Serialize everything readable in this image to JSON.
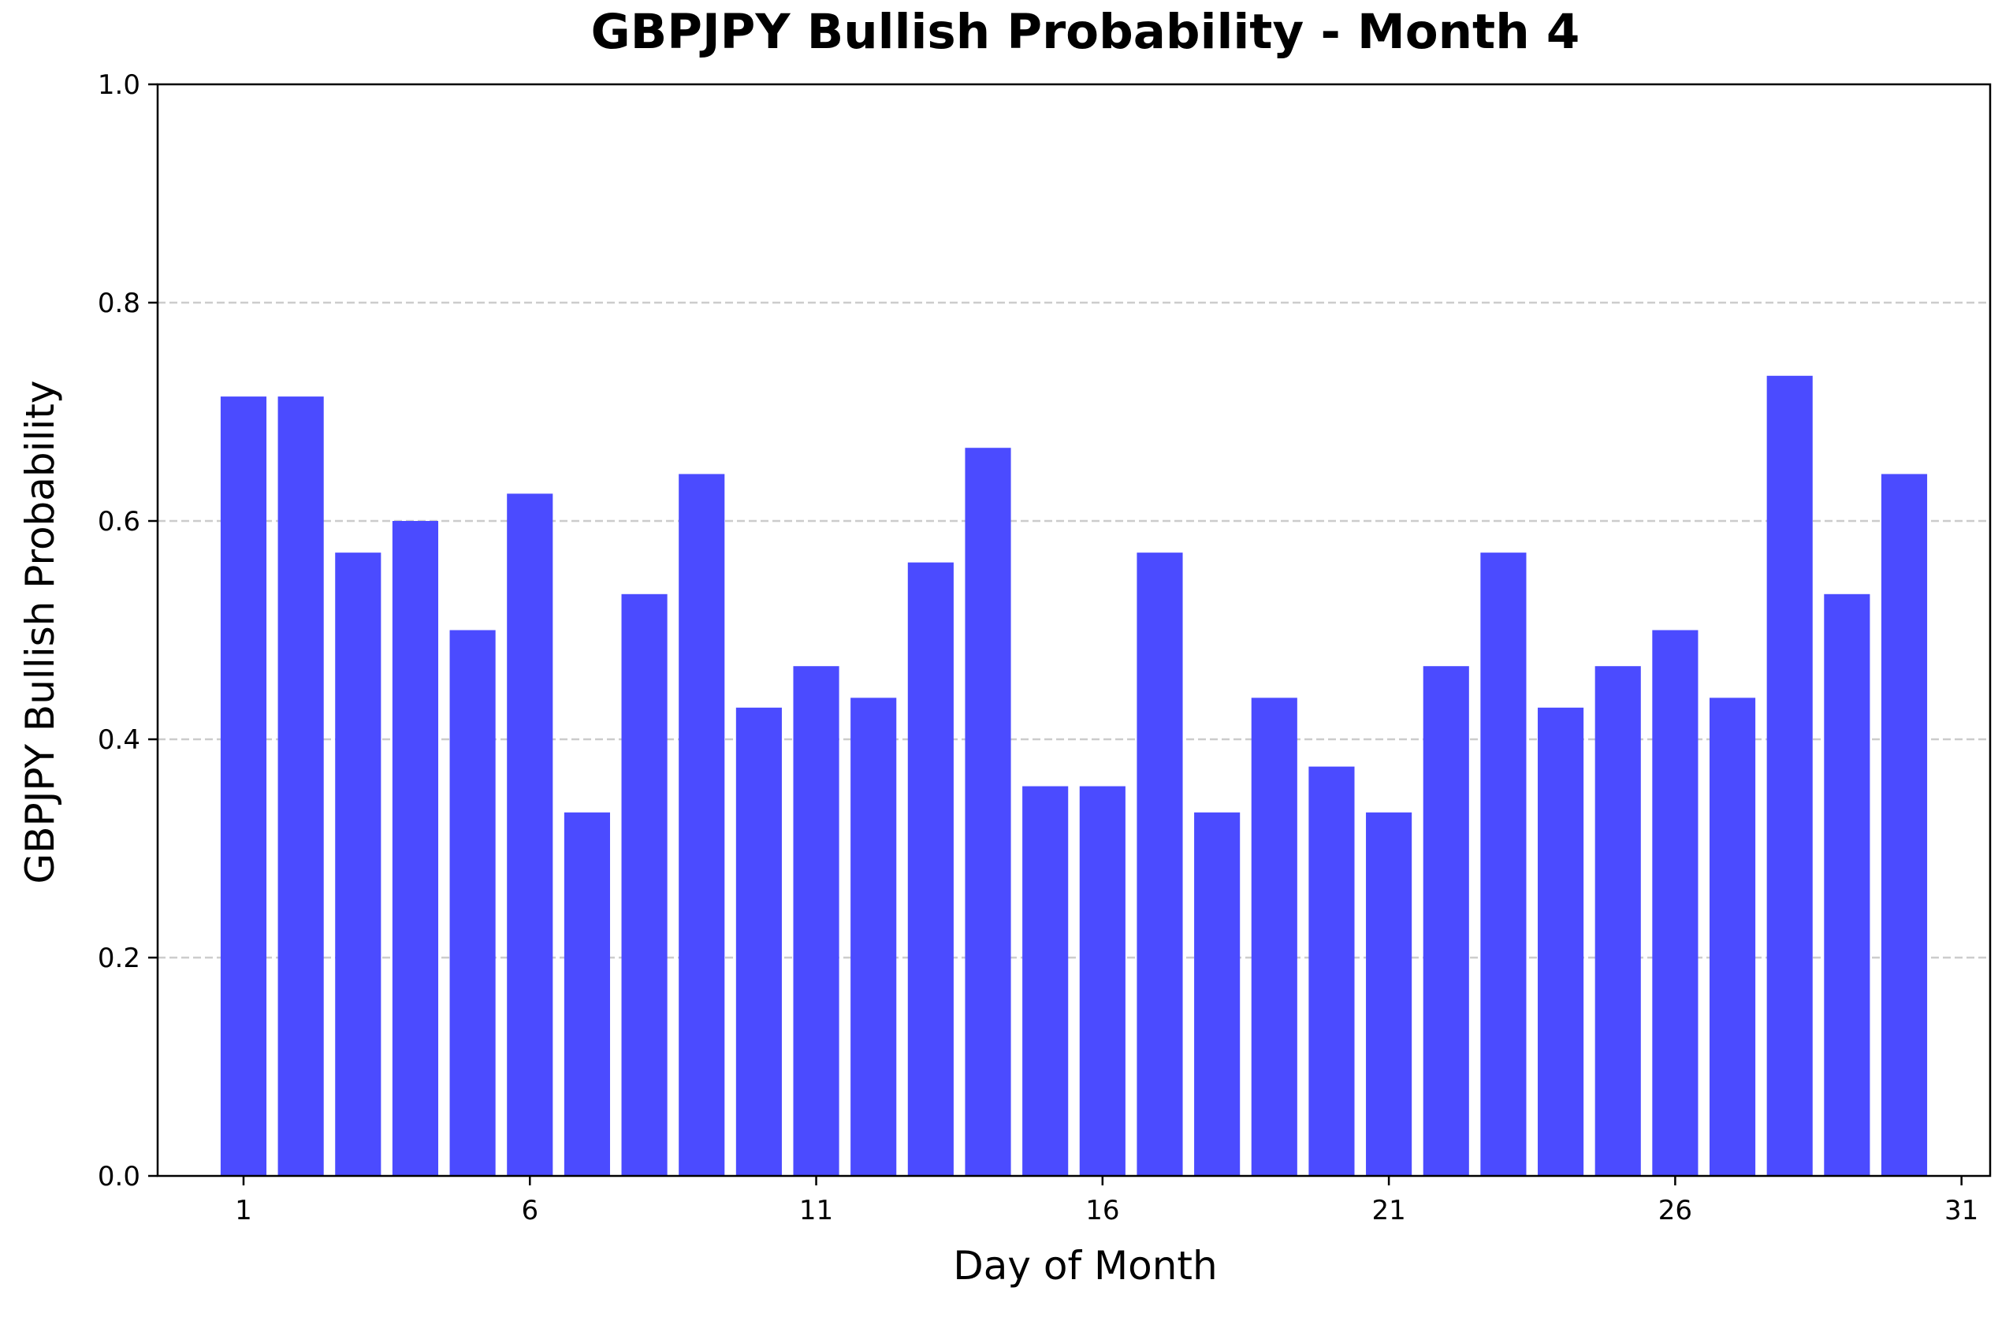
{
  "chart_data": {
    "type": "bar",
    "title": "GBPJPY Bullish Probability - Month 4",
    "xlabel": "Day of Month",
    "ylabel": "GBPJPY Bullish Probability",
    "categories": [
      1,
      2,
      3,
      4,
      5,
      6,
      7,
      8,
      9,
      10,
      11,
      12,
      13,
      14,
      15,
      16,
      17,
      18,
      19,
      20,
      21,
      22,
      23,
      24,
      25,
      26,
      27,
      28,
      29,
      30
    ],
    "values": [
      0.714,
      0.714,
      0.571,
      0.6,
      0.5,
      0.625,
      0.333,
      0.533,
      0.643,
      0.429,
      0.467,
      0.438,
      0.562,
      0.667,
      0.357,
      0.357,
      0.571,
      0.333,
      0.438,
      0.375,
      0.333,
      0.467,
      0.571,
      0.429,
      0.467,
      0.5,
      0.438,
      0.733,
      0.533,
      0.643
    ],
    "xlim": [
      -0.5,
      31.5
    ],
    "ylim": [
      0,
      1.0
    ],
    "x_ticks": [
      1,
      6,
      11,
      16,
      21,
      26,
      31
    ],
    "x_tick_labels": [
      "1",
      "6",
      "11",
      "16",
      "21",
      "26",
      "31"
    ],
    "y_ticks": [
      0.0,
      0.2,
      0.4,
      0.6,
      0.8,
      1.0
    ],
    "y_tick_labels": [
      "0.0",
      "0.2",
      "0.4",
      "0.6",
      "0.8",
      "1.0"
    ],
    "grid": "y-dashed",
    "legend": "none",
    "bar_color": "#4b4bff",
    "grid_color": "#cccccc"
  }
}
